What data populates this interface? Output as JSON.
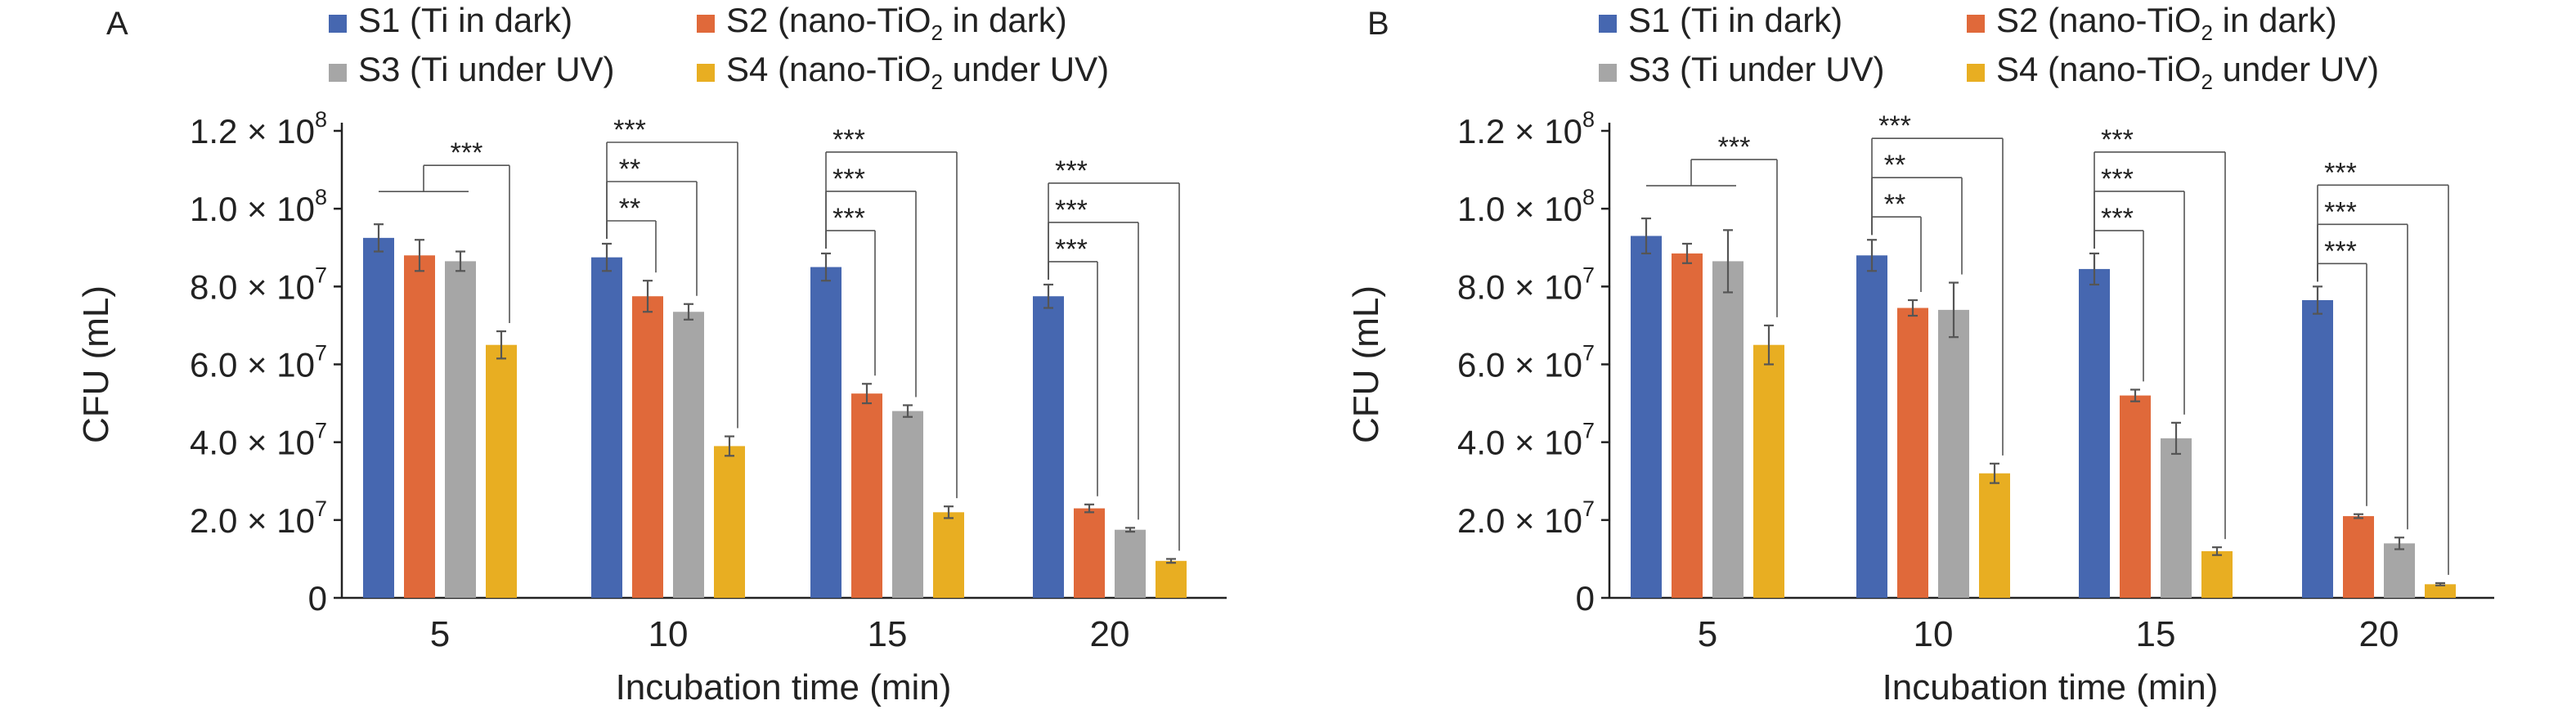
{
  "chart_data": [
    {
      "panel_label": "A",
      "type": "bar",
      "xlabel": "Incubation time (min)",
      "ylabel": "CFU (mL)",
      "ylim": [
        0,
        120000000
      ],
      "yticks": [
        {
          "value": 0,
          "label": "0"
        },
        {
          "value": 20000000,
          "mant": "2.0 × 10",
          "exp": "7"
        },
        {
          "value": 40000000,
          "mant": "4.0 × 10",
          "exp": "7"
        },
        {
          "value": 60000000,
          "mant": "6.0 × 10",
          "exp": "7"
        },
        {
          "value": 80000000,
          "mant": "8.0 × 10",
          "exp": "7"
        },
        {
          "value": 100000000,
          "mant": "1.0 × 10",
          "exp": "8"
        },
        {
          "value": 120000000,
          "mant": "1.2 × 10",
          "exp": "8"
        }
      ],
      "categories": [
        "5",
        "10",
        "15",
        "20"
      ],
      "series": [
        {
          "name": "S1 (Ti in dark)",
          "color": "#4667b0",
          "values": [
            92500000,
            87500000,
            85000000,
            77500000
          ],
          "errors": [
            3500000,
            3500000,
            3500000,
            3000000
          ]
        },
        {
          "name": "S2 (nano-TiO2 in dark)",
          "color": "#e0693a",
          "values": [
            88000000,
            77500000,
            52500000,
            23000000
          ],
          "errors": [
            4000000,
            4000000,
            2500000,
            1000000
          ]
        },
        {
          "name": "S3 (Ti under UV)",
          "color": "#a6a6a6",
          "values": [
            86500000,
            73500000,
            48000000,
            17500000
          ],
          "errors": [
            2500000,
            2000000,
            1500000,
            500000
          ]
        },
        {
          "name": "S4 (nano-TiO2 under UV)",
          "color": "#e8ae22",
          "values": [
            65000000,
            39000000,
            22000000,
            9500000
          ],
          "errors": [
            3500000,
            2500000,
            1500000,
            500000
          ]
        }
      ],
      "significance": [
        {
          "group": 0,
          "style": "group",
          "label": "***"
        },
        {
          "group": 1,
          "from": 0,
          "to": 1,
          "label": "**"
        },
        {
          "group": 1,
          "from": 0,
          "to": 2,
          "label": "**"
        },
        {
          "group": 1,
          "from": 0,
          "to": 3,
          "label": "***"
        },
        {
          "group": 2,
          "from": 0,
          "to": 1,
          "label": "***"
        },
        {
          "group": 2,
          "from": 0,
          "to": 2,
          "label": "***"
        },
        {
          "group": 2,
          "from": 0,
          "to": 3,
          "label": "***"
        },
        {
          "group": 3,
          "from": 0,
          "to": 1,
          "label": "***"
        },
        {
          "group": 3,
          "from": 0,
          "to": 2,
          "label": "***"
        },
        {
          "group": 3,
          "from": 0,
          "to": 3,
          "label": "***"
        }
      ]
    },
    {
      "panel_label": "B",
      "type": "bar",
      "xlabel": "Incubation time (min)",
      "ylabel": "CFU (mL)",
      "ylim": [
        0,
        120000000
      ],
      "yticks": [
        {
          "value": 0,
          "label": "0"
        },
        {
          "value": 20000000,
          "mant": "2.0 × 10",
          "exp": "7"
        },
        {
          "value": 40000000,
          "mant": "4.0 × 10",
          "exp": "7"
        },
        {
          "value": 60000000,
          "mant": "6.0 × 10",
          "exp": "7"
        },
        {
          "value": 80000000,
          "mant": "8.0 × 10",
          "exp": "7"
        },
        {
          "value": 100000000,
          "mant": "1.0 × 10",
          "exp": "8"
        },
        {
          "value": 120000000,
          "mant": "1.2 × 10",
          "exp": "8"
        }
      ],
      "categories": [
        "5",
        "10",
        "15",
        "20"
      ],
      "series": [
        {
          "name": "S1 (Ti in dark)",
          "color": "#4667b0",
          "values": [
            93000000,
            88000000,
            84500000,
            76500000
          ],
          "errors": [
            4500000,
            4000000,
            4000000,
            3500000
          ]
        },
        {
          "name": "S2 (nano-TiO2 in dark)",
          "color": "#e0693a",
          "values": [
            88500000,
            74500000,
            52000000,
            21000000
          ],
          "errors": [
            2500000,
            2000000,
            1500000,
            500000
          ]
        },
        {
          "name": "S3 (Ti under UV)",
          "color": "#a6a6a6",
          "values": [
            86500000,
            74000000,
            41000000,
            14000000
          ],
          "errors": [
            8000000,
            7000000,
            4000000,
            1500000
          ]
        },
        {
          "name": "S4 (nano-TiO2 under UV)",
          "color": "#e8ae22",
          "values": [
            65000000,
            32000000,
            12000000,
            3500000
          ],
          "errors": [
            5000000,
            2500000,
            1000000,
            300000
          ]
        }
      ],
      "significance": [
        {
          "group": 0,
          "style": "group",
          "label": "***"
        },
        {
          "group": 1,
          "from": 0,
          "to": 1,
          "label": "**"
        },
        {
          "group": 1,
          "from": 0,
          "to": 2,
          "label": "**"
        },
        {
          "group": 1,
          "from": 0,
          "to": 3,
          "label": "***"
        },
        {
          "group": 2,
          "from": 0,
          "to": 1,
          "label": "***"
        },
        {
          "group": 2,
          "from": 0,
          "to": 2,
          "label": "***"
        },
        {
          "group": 2,
          "from": 0,
          "to": 3,
          "label": "***"
        },
        {
          "group": 3,
          "from": 0,
          "to": 1,
          "label": "***"
        },
        {
          "group": 3,
          "from": 0,
          "to": 2,
          "label": "***"
        },
        {
          "group": 3,
          "from": 0,
          "to": 3,
          "label": "***"
        }
      ]
    }
  ],
  "legend": [
    {
      "pre": "S1 (Ti in dark)",
      "color": "#4667b0"
    },
    {
      "pre": "S2 (nano-TiO",
      "sub": "2",
      "post": " in dark)",
      "color": "#e0693a"
    },
    {
      "pre": "S3 (Ti under UV)",
      "color": "#a6a6a6"
    },
    {
      "pre": "S4 (nano-TiO",
      "sub": "2",
      "post": " under UV)",
      "color": "#e8ae22"
    }
  ]
}
